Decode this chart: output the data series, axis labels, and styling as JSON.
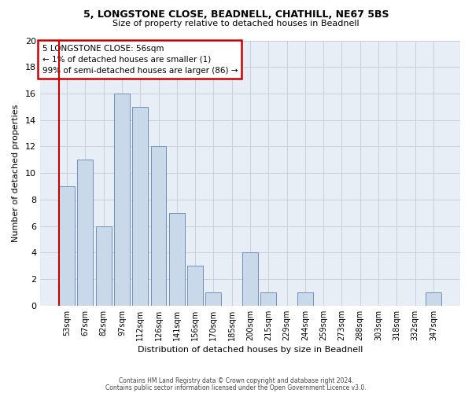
{
  "title_line1": "5, LONGSTONE CLOSE, BEADNELL, CHATHILL, NE67 5BS",
  "title_line2": "Size of property relative to detached houses in Beadnell",
  "xlabel": "Distribution of detached houses by size in Beadnell",
  "ylabel": "Number of detached properties",
  "footnote1": "Contains HM Land Registry data © Crown copyright and database right 2024.",
  "footnote2": "Contains public sector information licensed under the Open Government Licence v3.0.",
  "bar_labels": [
    "53sqm",
    "67sqm",
    "82sqm",
    "97sqm",
    "112sqm",
    "126sqm",
    "141sqm",
    "156sqm",
    "170sqm",
    "185sqm",
    "200sqm",
    "215sqm",
    "229sqm",
    "244sqm",
    "259sqm",
    "273sqm",
    "288sqm",
    "303sqm",
    "318sqm",
    "332sqm",
    "347sqm"
  ],
  "bar_values": [
    9,
    11,
    6,
    16,
    15,
    12,
    7,
    3,
    1,
    0,
    4,
    1,
    0,
    1,
    0,
    0,
    0,
    0,
    0,
    0,
    1
  ],
  "bar_color": "#c9d9ea",
  "bar_edge_color": "#7090b8",
  "grid_color": "#c8d0e0",
  "bg_color": "#ffffff",
  "plot_bg_color": "#e8eef6",
  "annotation_text": "5 LONGSTONE CLOSE: 56sqm\n← 1% of detached houses are smaller (1)\n99% of semi-detached houses are larger (86) →",
  "annotation_box_color": "#ffffff",
  "annotation_border_color": "#cc0000",
  "red_line_color": "#cc0000",
  "ylim": [
    0,
    20
  ],
  "yticks": [
    0,
    2,
    4,
    6,
    8,
    10,
    12,
    14,
    16,
    18,
    20
  ]
}
